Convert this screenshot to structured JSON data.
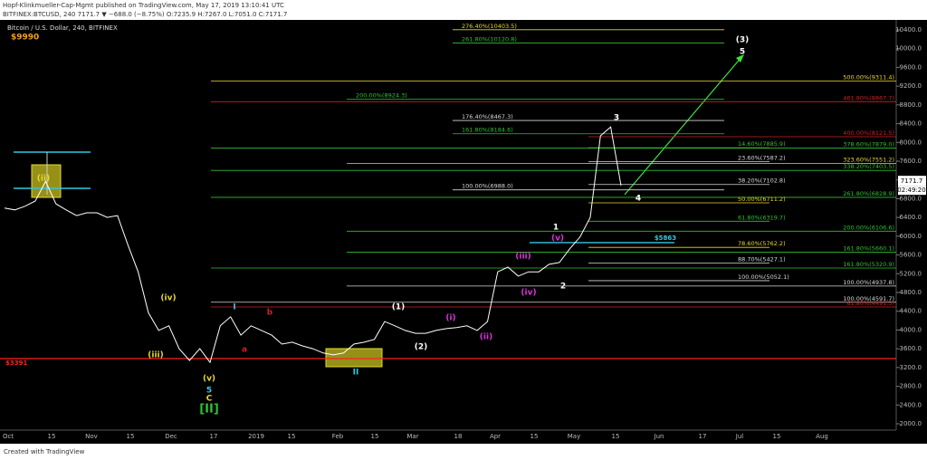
{
  "header": {
    "publisher": "Hopf-Klinkmueller-Cap-Mgmt published on TradingView.com, May 17, 2019 13:10:41 UTC",
    "quote": "BITFINEX:BTCUSD, 240  7171.7 ▼ −688.0 (−8.75%) O:7235.9 H:7267.0 L:7051.0 C:7171.7"
  },
  "footer": "Created with TradingView",
  "chart_data": {
    "type": "line",
    "title": "Bitcoin / U.S. Dollar, 240, BITFINEX",
    "subtitle": "$9990",
    "series": [
      {
        "name": "BTCUSD",
        "color": "#ffffff",
        "values": [
          6600,
          6560,
          6640,
          6750,
          7170,
          6690,
          6560,
          6440,
          6500,
          6500,
          6400,
          6440,
          5820,
          5240,
          4370,
          3990,
          4090,
          3600,
          3350,
          3600,
          3310,
          4090,
          4280,
          3890,
          4090,
          3990,
          3890,
          3700,
          3740,
          3660,
          3600,
          3510,
          3470,
          3510,
          3700,
          3740,
          3800,
          4180,
          4090,
          3990,
          3930,
          3930,
          3990,
          4030,
          4050,
          4090,
          3990,
          4180,
          5240,
          5340,
          5150,
          5240,
          5240,
          5400,
          5440,
          5730,
          5980,
          6400,
          8140,
          8330,
          7080
        ]
      }
    ],
    "x_labels": [
      "Oct",
      "15",
      "Nov",
      "15",
      "Dec",
      "17",
      "2019",
      "15",
      "Feb",
      "15",
      "Mar",
      "18",
      "Apr",
      "15",
      "May",
      "15",
      "Jun",
      "17",
      "Jul",
      "15",
      "Aug"
    ],
    "ylim": [
      1865,
      10612
    ],
    "yticks": [
      {
        "value": 2000,
        "label": "2000.0"
      },
      {
        "value": 2400,
        "label": "2400.0"
      },
      {
        "value": 2800,
        "label": "2800.0"
      },
      {
        "value": 3200,
        "label": "3200.0"
      },
      {
        "value": 3600,
        "label": "3600.0"
      },
      {
        "value": 4000,
        "label": "4000.0"
      },
      {
        "value": 4400,
        "label": "4400.0"
      },
      {
        "value": 4800,
        "label": "4800.0"
      },
      {
        "value": 5200,
        "label": "5200.0"
      },
      {
        "value": 5600,
        "label": "5600.0"
      },
      {
        "value": 6000,
        "label": "6000.0"
      },
      {
        "value": 6400,
        "label": "6400.0"
      },
      {
        "value": 6800,
        "label": "6800.0"
      },
      {
        "value": 7200,
        "label": "7200.0"
      },
      {
        "value": 7600,
        "label": "7600.0"
      },
      {
        "value": 8000,
        "label": "8000.0"
      },
      {
        "value": 8400,
        "label": "8400.0"
      },
      {
        "value": 8800,
        "label": "8800.0"
      },
      {
        "value": 9200,
        "label": "9200.0"
      },
      {
        "value": 9600,
        "label": "9600.0"
      },
      {
        "value": 10000,
        "label": "10000.0"
      },
      {
        "value": 10400,
        "label": "10400.0"
      }
    ],
    "last_price": {
      "value": 7171.7,
      "label": "7171.7"
    },
    "countdown": "02:49:20",
    "levels": [
      {
        "value": 3391,
        "label": "$3391",
        "color": "#ff2020"
      },
      {
        "value": 5863,
        "label": "$5863",
        "color": "#30c8e0"
      }
    ],
    "fib_lines": [
      {
        "value": 10403.5,
        "label": "276.40%(10403.5)",
        "color": "#e8d830"
      },
      {
        "value": 10120.8,
        "label": "261.80%(10120.8)",
        "color": "#30c030"
      },
      {
        "value": 9311.4,
        "label": "500.00%(9311.4)",
        "color": "#e8d830"
      },
      {
        "value": 8867.7,
        "label": "461.80%(8867.7)",
        "color": "#d02020"
      },
      {
        "value": 8924.3,
        "label": "200.00%(8924.3)",
        "color": "#30c030"
      },
      {
        "value": 8467.3,
        "label": "176.40%(8467.3)",
        "color": "#d8d8d8"
      },
      {
        "value": 8184.6,
        "label": "161.80%(8184.6)",
        "color": "#30c030"
      },
      {
        "value": 8121.5,
        "label": "400.00%(8121.5)",
        "color": "#d02020"
      },
      {
        "value": 7885.9,
        "label": "14.60%(7885.9)",
        "color": "#30c030"
      },
      {
        "value": 7879.0,
        "label": "378.60%(7879.0)",
        "color": "#30c030"
      },
      {
        "value": 7587.2,
        "label": "23.60%(7587.2)",
        "color": "#d8d8d8"
      },
      {
        "value": 7551.2,
        "label": "323.60%(7551.2)",
        "color": "#e8d830"
      },
      {
        "value": 7403.5,
        "label": "338.20%(7403.5)",
        "color": "#30c030"
      },
      {
        "value": 7102.8,
        "label": "38.20%(7102.8)",
        "color": "#d8d8d8"
      },
      {
        "value": 6988.0,
        "label": "100.00%(6988.0)",
        "color": "#d8d8d8"
      },
      {
        "value": 6828.9,
        "label": "261.80%(6828.9)",
        "color": "#30c030"
      },
      {
        "value": 6711.2,
        "label": "50.00%(6711.2)",
        "color": "#e8d830"
      },
      {
        "value": 6319.7,
        "label": "61.80%(6319.7)",
        "color": "#30c030"
      },
      {
        "value": 6106.6,
        "label": "200.00%(6106.6)",
        "color": "#30c030"
      },
      {
        "value": 5762.2,
        "label": "78.60%(5762.2)",
        "color": "#e8d830"
      },
      {
        "value": 5660.1,
        "label": "161.80%(5660.1)",
        "color": "#30c030"
      },
      {
        "value": 5427.1,
        "label": "88.70%(5427.1)",
        "color": "#d8d8d8"
      },
      {
        "value": 5320.9,
        "label": "161.80%(5320.9)",
        "color": "#30c030"
      },
      {
        "value": 5052.1,
        "label": "100.00%(5052.1)",
        "color": "#d8d8d8"
      },
      {
        "value": 4937.8,
        "label": "100.00%(4937.8)",
        "color": "#d8d8d8"
      },
      {
        "value": 4591.7,
        "label": "100.00%(4591.7)",
        "color": "#d8d8d8"
      },
      {
        "value": 4491.3,
        "label": "61.80%(4491.3)",
        "color": "#d02020"
      }
    ],
    "wave_labels": [
      {
        "text": "(ii)",
        "color": "#e8d830"
      },
      {
        "text": "(iii)",
        "color": "#e8d830"
      },
      {
        "text": "(iv)",
        "color": "#e8d830"
      },
      {
        "text": "(v)",
        "color": "#e8d830"
      },
      {
        "text": "5",
        "color": "#30c8e0"
      },
      {
        "text": "C",
        "color": "#e8d830"
      },
      {
        "text": "[II]",
        "color": "#30c030"
      },
      {
        "text": "I",
        "color": "#30c8e0"
      },
      {
        "text": "a",
        "color": "#d02020"
      },
      {
        "text": "b",
        "color": "#d02020"
      },
      {
        "text": "II",
        "color": "#30c8e0"
      },
      {
        "text": "(1)",
        "color": "#ffffff"
      },
      {
        "text": "(2)",
        "color": "#ffffff"
      },
      {
        "text": "(i)",
        "color": "#e030e0"
      },
      {
        "text": "(ii)",
        "color": "#e030e0"
      },
      {
        "text": "(iii)",
        "color": "#e030e0"
      },
      {
        "text": "(iv)",
        "color": "#e030e0"
      },
      {
        "text": "(v)",
        "color": "#e030e0"
      },
      {
        "text": "1",
        "color": "#ffffff"
      },
      {
        "text": "2",
        "color": "#ffffff"
      },
      {
        "text": "3",
        "color": "#ffffff"
      },
      {
        "text": "4",
        "color": "#ffffff"
      },
      {
        "text": "(3)",
        "color": "#ffffff"
      },
      {
        "text": "5",
        "color": "#ffffff"
      }
    ]
  }
}
